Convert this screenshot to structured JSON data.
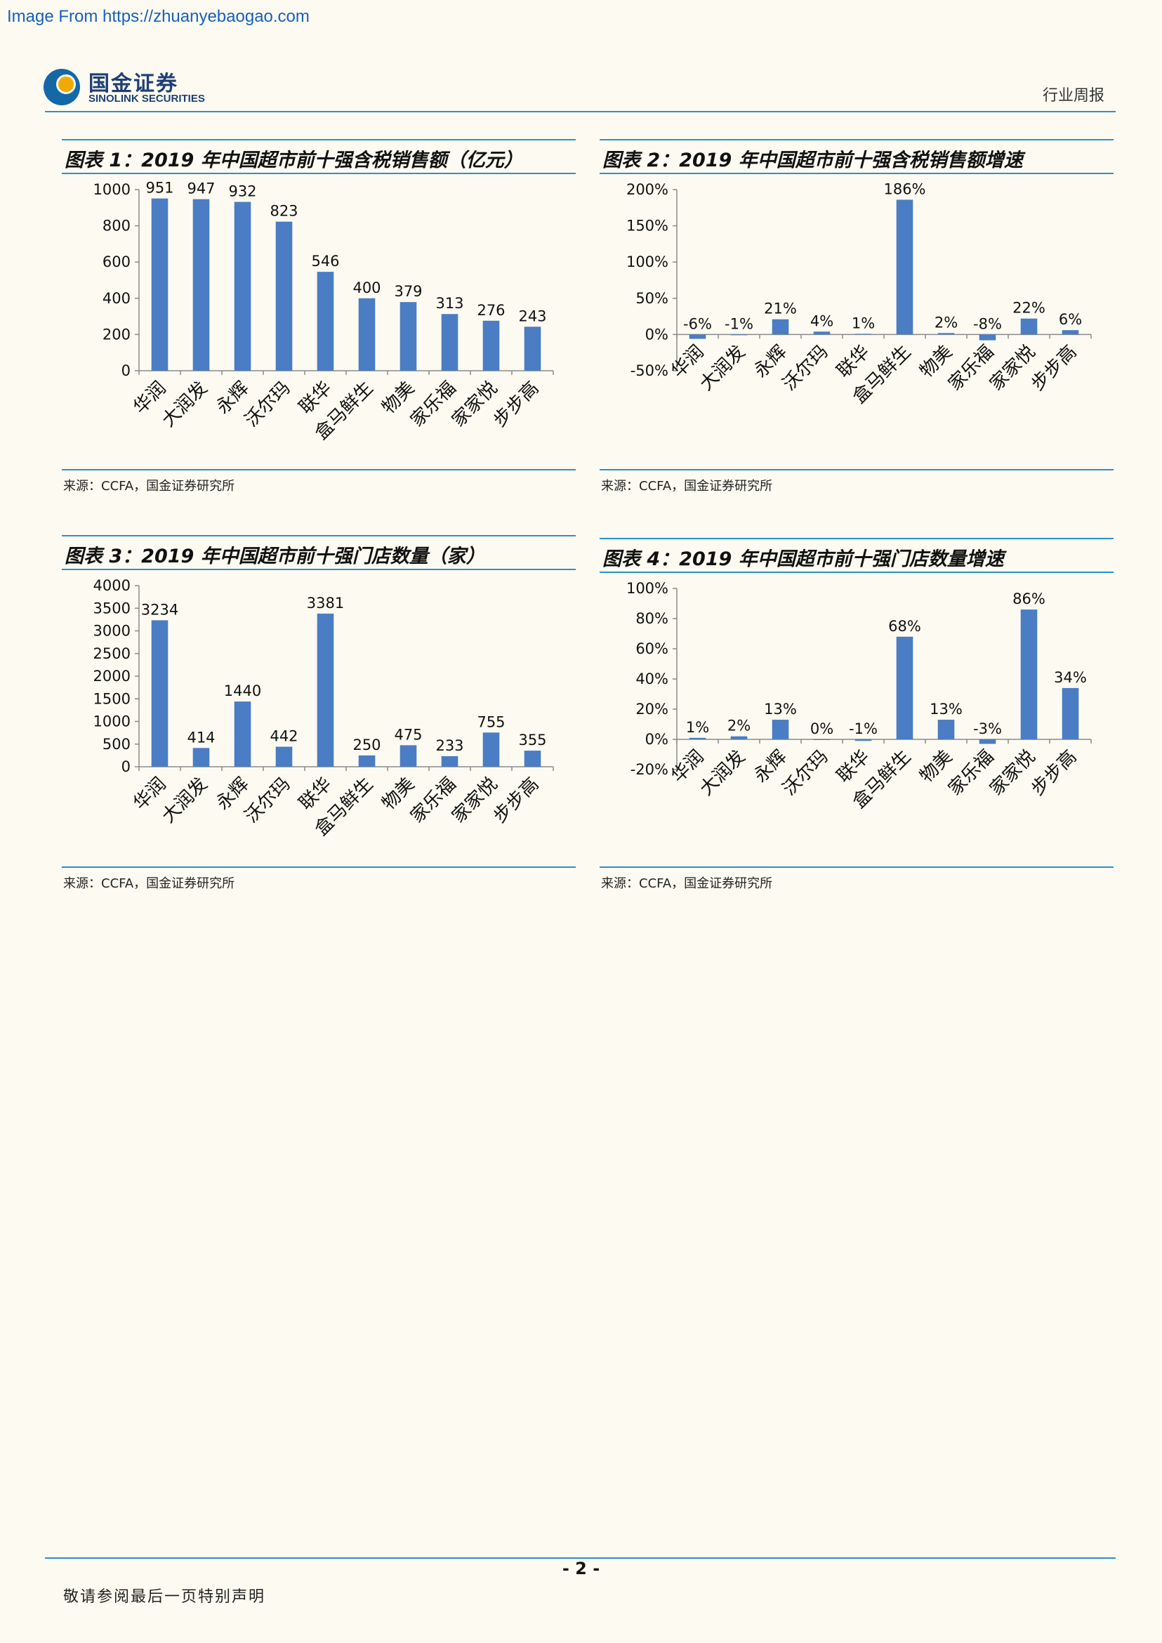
{
  "header": {
    "watermark": "Image From https://zhuanyebaogao.com",
    "logo_cn": "国金证券",
    "logo_en": "SINOLINK SECURITIES",
    "doc_type": "行业周报"
  },
  "colors": {
    "bar": "#4a7dc4",
    "rule": "#2b8fd0",
    "background": "#fdfbf1"
  },
  "chart_data": [
    {
      "id": "c1",
      "type": "bar",
      "title": "图表 1：2019 年中国超市前十强含税销售额（亿元）",
      "categories": [
        "华润",
        "大润发",
        "永辉",
        "沃尔玛",
        "联华",
        "盒马鲜生",
        "物美",
        "家乐福",
        "家家悦",
        "步步高"
      ],
      "values": [
        951,
        947,
        932,
        823,
        546,
        400,
        379,
        313,
        276,
        243
      ],
      "value_labels": [
        "951",
        "947",
        "932",
        "823",
        "546",
        "400",
        "379",
        "313",
        "276",
        "243"
      ],
      "ylim": [
        0,
        1000
      ],
      "yticks": [
        0,
        200,
        400,
        600,
        800,
        1000
      ],
      "ytick_labels": [
        "0",
        "200",
        "400",
        "600",
        "800",
        "1000"
      ],
      "source": "来源：CCFA，国金证券研究所"
    },
    {
      "id": "c2",
      "type": "bar",
      "title": "图表 2：2019 年中国超市前十强含税销售额增速",
      "categories": [
        "华润",
        "大润发",
        "永辉",
        "沃尔玛",
        "联华",
        "盒马鲜生",
        "物美",
        "家乐福",
        "家家悦",
        "步步高"
      ],
      "values": [
        -6,
        -1,
        21,
        4,
        1,
        186,
        2,
        -8,
        22,
        6
      ],
      "value_labels": [
        "-6%",
        "-1%",
        "21%",
        "4%",
        "1%",
        "186%",
        "2%",
        "-8%",
        "22%",
        "6%"
      ],
      "ylim": [
        -50,
        200
      ],
      "yticks": [
        -50,
        0,
        50,
        100,
        150,
        200
      ],
      "ytick_labels": [
        "-50%",
        "0%",
        "50%",
        "100%",
        "150%",
        "200%"
      ],
      "source": "来源：CCFA，国金证券研究所"
    },
    {
      "id": "c3",
      "type": "bar",
      "title": "图表 3：2019 年中国超市前十强门店数量（家）",
      "categories": [
        "华润",
        "大润发",
        "永辉",
        "沃尔玛",
        "联华",
        "盒马鲜生",
        "物美",
        "家乐福",
        "家家悦",
        "步步高"
      ],
      "values": [
        3234,
        414,
        1440,
        442,
        3381,
        250,
        475,
        233,
        755,
        355
      ],
      "value_labels": [
        "3234",
        "414",
        "1440",
        "442",
        "3381",
        "250",
        "475",
        "233",
        "755",
        "355"
      ],
      "ylim": [
        0,
        4000
      ],
      "yticks": [
        0,
        500,
        1000,
        1500,
        2000,
        2500,
        3000,
        3500,
        4000
      ],
      "ytick_labels": [
        "0",
        "500",
        "1000",
        "1500",
        "2000",
        "2500",
        "3000",
        "3500",
        "4000"
      ],
      "source": "来源：CCFA，国金证券研究所"
    },
    {
      "id": "c4",
      "type": "bar",
      "title": "图表 4：2019 年中国超市前十强门店数量增速",
      "categories": [
        "华润",
        "大润发",
        "永辉",
        "沃尔玛",
        "联华",
        "盒马鲜生",
        "物美",
        "家乐福",
        "家家悦",
        "步步高"
      ],
      "values": [
        1,
        2,
        13,
        0,
        -1,
        68,
        13,
        -3,
        86,
        34
      ],
      "value_labels": [
        "1%",
        "2%",
        "13%",
        "0%",
        "-1%",
        "68%",
        "13%",
        "-3%",
        "86%",
        "34%"
      ],
      "ylim": [
        -20,
        100
      ],
      "yticks": [
        -20,
        0,
        20,
        40,
        60,
        80,
        100
      ],
      "ytick_labels": [
        "-20%",
        "0%",
        "20%",
        "40%",
        "60%",
        "80%",
        "100%"
      ],
      "source": "来源：CCFA，国金证券研究所"
    }
  ],
  "footer": {
    "page_number": "- 2 -",
    "note": "敬请参阅最后一页特别声明"
  }
}
